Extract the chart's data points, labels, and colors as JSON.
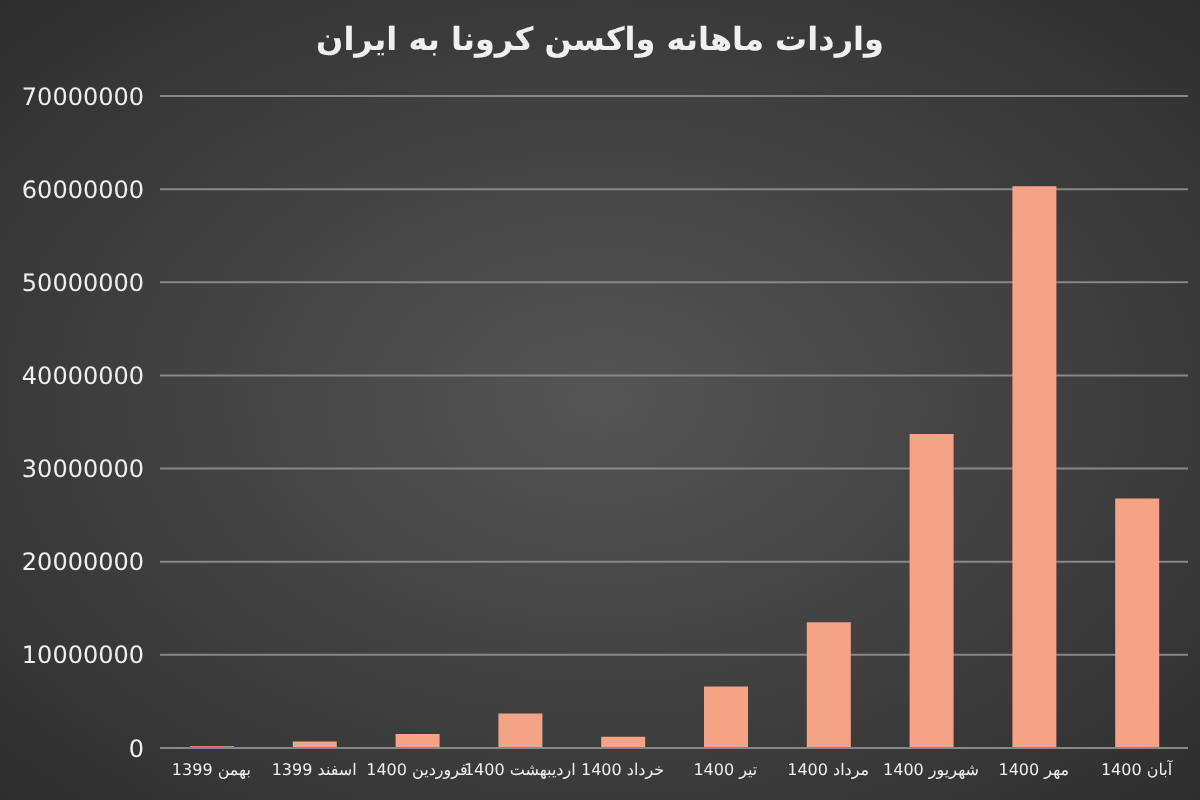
{
  "chart_data": {
    "type": "bar",
    "title": "واردات ماهانه واکسن کرونا به ایران",
    "categories": [
      "بهمن 1399",
      "اسفند 1399",
      "فروردین 1400",
      "اردیبهشت 1400",
      "خرداد 1400",
      "تیر 1400",
      "مرداد 1400",
      "شهریور 1400",
      "مهر 1400",
      "آبان 1400"
    ],
    "values": [
      200000,
      700000,
      1500000,
      3700000,
      1200000,
      6600000,
      13500000,
      33700000,
      60300000,
      26800000
    ],
    "color": "#f4a386",
    "ylim": [
      0,
      70000000
    ],
    "yticks": [
      0,
      10000000,
      20000000,
      30000000,
      40000000,
      50000000,
      60000000,
      70000000
    ],
    "grid": "y"
  }
}
